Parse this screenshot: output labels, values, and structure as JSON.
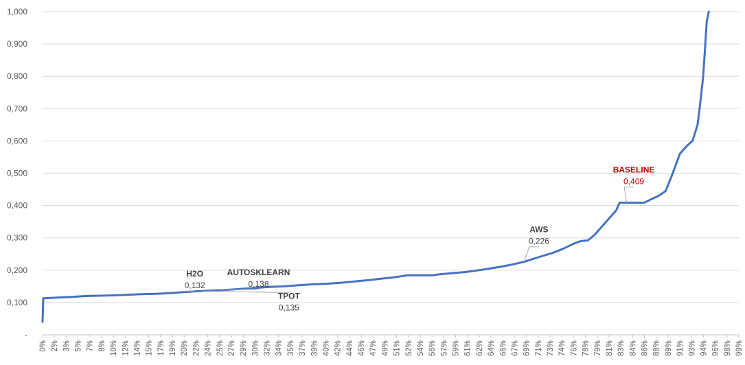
{
  "chart_data": {
    "type": "line",
    "title": "",
    "xlabel": "",
    "ylabel": "",
    "ylim": [
      0,
      1.0
    ],
    "y_ticks": [
      "-",
      "0,100",
      "0,200",
      "0,300",
      "0,400",
      "0,500",
      "0,600",
      "0,700",
      "0,800",
      "0,900",
      "1,000"
    ],
    "x_ticks": [
      "0%",
      "2%",
      "3%",
      "5%",
      "7%",
      "8%",
      "10%",
      "12%",
      "14%",
      "15%",
      "17%",
      "19%",
      "20%",
      "22%",
      "24%",
      "25%",
      "27%",
      "29%",
      "30%",
      "32%",
      "34%",
      "35%",
      "37%",
      "39%",
      "40%",
      "42%",
      "44%",
      "46%",
      "47%",
      "49%",
      "51%",
      "52%",
      "54%",
      "56%",
      "57%",
      "59%",
      "61%",
      "62%",
      "64%",
      "66%",
      "67%",
      "69%",
      "71%",
      "73%",
      "74%",
      "76%",
      "78%",
      "79%",
      "81%",
      "83%",
      "84%",
      "86%",
      "88%",
      "89%",
      "91%",
      "93%",
      "94%",
      "96%",
      "98%",
      "99%"
    ],
    "grid": true,
    "series": [
      {
        "color": "#4472C4",
        "points": [
          [
            0,
            0.04
          ],
          [
            0.1,
            0.113
          ],
          [
            2,
            0.115
          ],
          [
            4,
            0.117
          ],
          [
            6,
            0.12
          ],
          [
            8,
            0.121
          ],
          [
            10,
            0.122
          ],
          [
            12,
            0.124
          ],
          [
            14,
            0.126
          ],
          [
            16,
            0.127
          ],
          [
            18,
            0.129
          ],
          [
            20,
            0.132
          ],
          [
            22,
            0.135
          ],
          [
            24,
            0.137
          ],
          [
            26,
            0.139
          ],
          [
            28,
            0.142
          ],
          [
            30,
            0.145
          ],
          [
            32,
            0.148
          ],
          [
            34,
            0.15
          ],
          [
            36,
            0.153
          ],
          [
            38,
            0.156
          ],
          [
            40,
            0.158
          ],
          [
            42,
            0.161
          ],
          [
            44,
            0.165
          ],
          [
            46,
            0.169
          ],
          [
            48,
            0.174
          ],
          [
            50,
            0.179
          ],
          [
            51.5,
            0.184
          ],
          [
            53,
            0.184
          ],
          [
            55,
            0.184
          ],
          [
            56,
            0.187
          ],
          [
            58,
            0.191
          ],
          [
            60,
            0.195
          ],
          [
            62,
            0.201
          ],
          [
            64,
            0.208
          ],
          [
            66,
            0.216
          ],
          [
            68,
            0.226
          ],
          [
            70,
            0.24
          ],
          [
            72,
            0.253
          ],
          [
            73.5,
            0.266
          ],
          [
            75,
            0.282
          ],
          [
            76,
            0.29
          ],
          [
            77,
            0.292
          ],
          [
            78,
            0.31
          ],
          [
            79,
            0.335
          ],
          [
            80,
            0.36
          ],
          [
            81,
            0.385
          ],
          [
            81.5,
            0.409
          ],
          [
            83,
            0.409
          ],
          [
            84,
            0.409
          ],
          [
            85,
            0.409
          ],
          [
            86,
            0.42
          ],
          [
            87,
            0.43
          ],
          [
            88,
            0.445
          ],
          [
            89,
            0.5
          ],
          [
            90,
            0.56
          ],
          [
            91,
            0.585
          ],
          [
            91.8,
            0.6
          ],
          [
            92.5,
            0.65
          ],
          [
            92.9,
            0.72
          ],
          [
            93.3,
            0.8
          ],
          [
            93.6,
            0.9
          ],
          [
            93.8,
            0.97
          ],
          [
            94.1,
            1.0
          ]
        ]
      }
    ],
    "annotations": [
      {
        "name": "H2O",
        "value": "0,132",
        "color": "#404040",
        "at": [
          20,
          0.132
        ],
        "label_at": [
          21.5,
          0.163
        ]
      },
      {
        "name": "AUTOSKLEARN",
        "value": "0,138",
        "color": "#404040",
        "at": [
          25,
          0.138
        ],
        "label_at": [
          30.5,
          0.168
        ]
      },
      {
        "name": "TPOT",
        "value": "0,135",
        "color": "#404040",
        "at": [
          22.5,
          0.135
        ],
        "label_at": [
          34.8,
          0.095
        ]
      },
      {
        "name": "AWS",
        "value": "0,226",
        "color": "#404040",
        "at": [
          68,
          0.226
        ],
        "label_at": [
          70.1,
          0.3
        ]
      },
      {
        "name": "BASELINE",
        "value": "0,409",
        "color": "#C00000",
        "at": [
          82.5,
          0.409
        ],
        "label_at": [
          83.5,
          0.485
        ]
      }
    ]
  }
}
